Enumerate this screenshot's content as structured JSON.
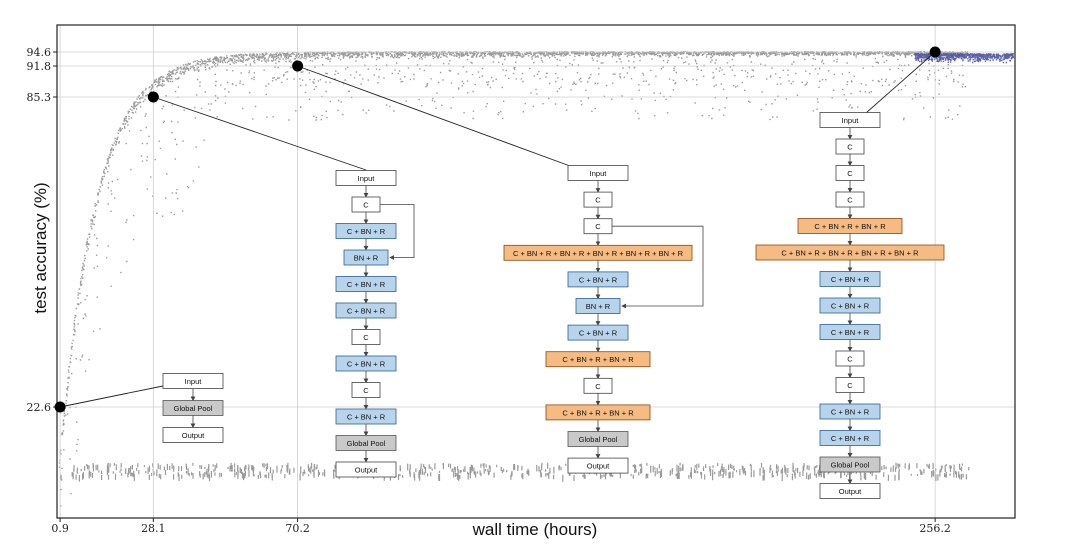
{
  "chart_data": {
    "type": "scatter",
    "xlabel": "wall time (hours)",
    "ylabel": "test accuracy (%)",
    "xticks": [
      0.9,
      28.1,
      70.2,
      256.2
    ],
    "yticks": [
      22.6,
      85.3,
      91.8,
      94.6
    ],
    "xticklabels": [
      "0.9",
      "28.1",
      "70.2",
      "256.2"
    ],
    "yticklabels": [
      "22.6",
      "85.3",
      "91.8",
      "94.6"
    ],
    "xlim": [
      0,
      279.5
    ],
    "ylim": [
      0,
      100
    ],
    "grid": true,
    "colors": {
      "points": "#8a8a8a",
      "recent_points": "#4a4fa0",
      "highlight": "#000000",
      "conv_box": "#b8d4ec",
      "wide_box": "#f6bb82",
      "pool_box": "#c9c9c9"
    },
    "highlighted": [
      {
        "x": 0.9,
        "y": 22.6
      },
      {
        "x": 28.1,
        "y": 85.3
      },
      {
        "x": 70.2,
        "y": 91.8
      },
      {
        "x": 256.2,
        "y": 94.6
      }
    ],
    "architectures": [
      {
        "blocks": [
          {
            "label": "Input",
            "kind": "plain"
          },
          {
            "label": "Global Pool",
            "kind": "pool"
          },
          {
            "label": "Output",
            "kind": "plain"
          }
        ]
      },
      {
        "blocks": [
          {
            "label": "Input",
            "kind": "plain"
          },
          {
            "label": "C",
            "kind": "plain"
          },
          {
            "label": "C + BN + R",
            "kind": "conv"
          },
          {
            "label": "BN + R",
            "kind": "conv"
          },
          {
            "label": "C + BN + R",
            "kind": "conv"
          },
          {
            "label": "C + BN + R",
            "kind": "conv"
          },
          {
            "label": "C",
            "kind": "plain"
          },
          {
            "label": "C + BN + R",
            "kind": "conv"
          },
          {
            "label": "C",
            "kind": "plain"
          },
          {
            "label": "C + BN + R",
            "kind": "conv"
          },
          {
            "label": "Global Pool",
            "kind": "pool"
          },
          {
            "label": "Output",
            "kind": "plain"
          }
        ]
      },
      {
        "blocks": [
          {
            "label": "Input",
            "kind": "plain"
          },
          {
            "label": "C",
            "kind": "plain"
          },
          {
            "label": "C",
            "kind": "plain"
          },
          {
            "label": "C + BN + R + BN + R + BN + R + BN + R + BN + R",
            "kind": "wide"
          },
          {
            "label": "C + BN + R",
            "kind": "conv"
          },
          {
            "label": "BN + R",
            "kind": "conv"
          },
          {
            "label": "C + BN + R",
            "kind": "conv"
          },
          {
            "label": "C + BN + R + BN + R",
            "kind": "wide"
          },
          {
            "label": "C",
            "kind": "plain"
          },
          {
            "label": "C + BN + R + BN + R",
            "kind": "wide"
          },
          {
            "label": "Global Pool",
            "kind": "pool"
          },
          {
            "label": "Output",
            "kind": "plain"
          }
        ]
      },
      {
        "blocks": [
          {
            "label": "Input",
            "kind": "plain"
          },
          {
            "label": "C",
            "kind": "plain"
          },
          {
            "label": "C",
            "kind": "plain"
          },
          {
            "label": "C",
            "kind": "plain"
          },
          {
            "label": "C + BN + R + BN + R",
            "kind": "wide"
          },
          {
            "label": "C + BN + R + BN + R + BN + R + BN + R",
            "kind": "wide"
          },
          {
            "label": "C + BN + R",
            "kind": "conv"
          },
          {
            "label": "C + BN + R",
            "kind": "conv"
          },
          {
            "label": "C + BN + R",
            "kind": "conv"
          },
          {
            "label": "C",
            "kind": "plain"
          },
          {
            "label": "C",
            "kind": "plain"
          },
          {
            "label": "C + BN + R",
            "kind": "conv"
          },
          {
            "label": "C + BN + R",
            "kind": "conv"
          },
          {
            "label": "Global Pool",
            "kind": "pool"
          },
          {
            "label": "Output",
            "kind": "plain"
          }
        ]
      }
    ]
  }
}
